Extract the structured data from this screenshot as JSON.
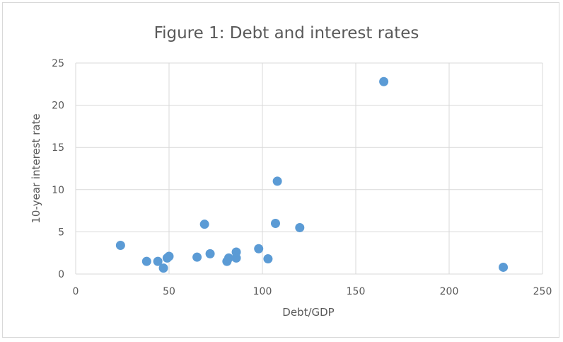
{
  "chart_data": {
    "type": "scatter",
    "title": "Figure 1: Debt and interest rates",
    "xlabel": "Debt/GDP",
    "ylabel": "10-year interest rate",
    "xlim": [
      0,
      250
    ],
    "ylim": [
      0,
      25
    ],
    "xticks": [
      0,
      50,
      100,
      150,
      200,
      250
    ],
    "yticks": [
      0,
      5,
      10,
      15,
      20,
      25
    ],
    "grid": true,
    "legend": "none",
    "color": "#5b9bd5",
    "points": [
      {
        "x": 24,
        "y": 3.4
      },
      {
        "x": 38,
        "y": 1.5
      },
      {
        "x": 44,
        "y": 1.5
      },
      {
        "x": 47,
        "y": 0.7
      },
      {
        "x": 49,
        "y": 1.9
      },
      {
        "x": 50,
        "y": 2.1
      },
      {
        "x": 65,
        "y": 2.0
      },
      {
        "x": 69,
        "y": 5.9
      },
      {
        "x": 72,
        "y": 2.4
      },
      {
        "x": 81,
        "y": 1.5
      },
      {
        "x": 82,
        "y": 1.9
      },
      {
        "x": 86,
        "y": 1.9
      },
      {
        "x": 86,
        "y": 2.6
      },
      {
        "x": 98,
        "y": 3.0
      },
      {
        "x": 103,
        "y": 1.8
      },
      {
        "x": 107,
        "y": 6.0
      },
      {
        "x": 108,
        "y": 11.0
      },
      {
        "x": 120,
        "y": 5.5
      },
      {
        "x": 165,
        "y": 22.8
      },
      {
        "x": 229,
        "y": 0.8
      }
    ]
  }
}
